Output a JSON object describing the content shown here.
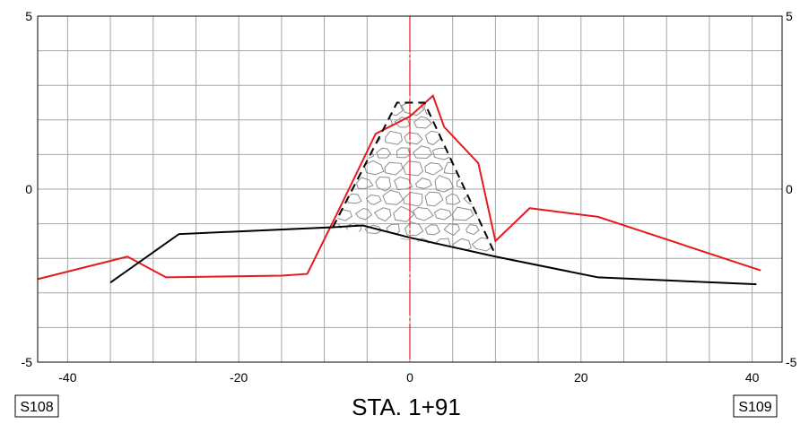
{
  "chart_data": {
    "type": "line",
    "title": "STA. 1+91",
    "xlim": [
      -43.5,
      43.5
    ],
    "ylim": [
      -5,
      5
    ],
    "x_ticks": [
      -40,
      -20,
      0,
      20,
      40
    ],
    "x_tick_labels": [
      "-40",
      "-20",
      "0",
      "20",
      "40"
    ],
    "y_ticks": [
      -5,
      0,
      5
    ],
    "y_tick_labels": [
      "-5",
      "0",
      "5"
    ],
    "grid": true,
    "left_section_label": "S108",
    "right_section_label": "S109",
    "series": [
      {
        "color": "#e8191d",
        "style": "solid",
        "x": [
          -43.5,
          -33,
          -28.5,
          -15,
          -12,
          -8.5,
          -4,
          0,
          2.7,
          4,
          8,
          10,
          14,
          22,
          41
        ],
        "y": [
          -2.6,
          -1.95,
          -2.55,
          -2.5,
          -2.45,
          -0.7,
          1.6,
          2.1,
          2.7,
          1.8,
          0.75,
          -1.5,
          -0.55,
          -0.8,
          -2.35
        ]
      },
      {
        "color": "#000000",
        "style": "solid",
        "x": [
          -35,
          -27,
          -9,
          -5.5,
          0,
          10,
          22,
          40.5
        ],
        "y": [
          -2.7,
          -1.3,
          -1.1,
          -1.05,
          -1.4,
          -1.95,
          -2.55,
          -2.75
        ]
      },
      {
        "color": "#000000",
        "style": "dashed",
        "x": [
          -9,
          -1.5,
          1.7,
          10
        ],
        "y": [
          -1.1,
          2.5,
          2.5,
          -1.9
        ]
      }
    ],
    "centerline": {
      "x": 0,
      "color": "#e8191d"
    },
    "fill_pattern": "cobblestone",
    "fill_color": "#8c8c8c"
  }
}
